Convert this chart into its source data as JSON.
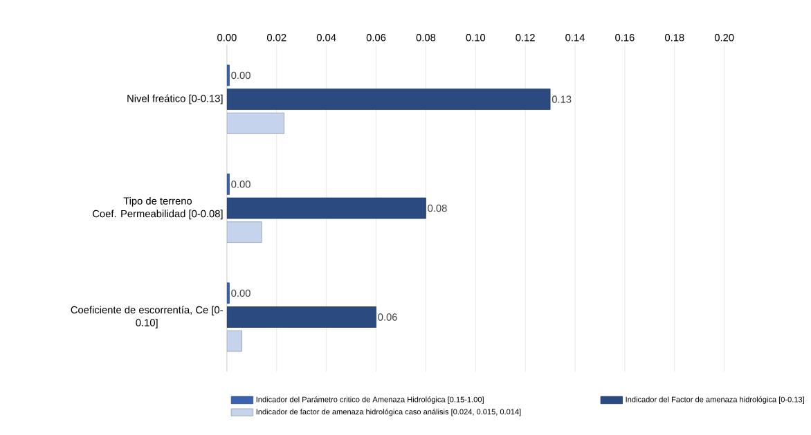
{
  "chart_data": {
    "type": "bar",
    "orientation": "horizontal",
    "categories": [
      "Nivel freático [0-0.13]",
      "Tipo de terreno\nCoef. Permeabilidad [0-0.08]",
      "Coeficiente de escorrentía, Ce [0-\n0.10]"
    ],
    "series": [
      {
        "name": "Indicador del Parámetro critico de Amenaza Hidrológica [0.15-1.00]",
        "color": "#3a62b0",
        "values": [
          0.001,
          0.001,
          0.001
        ],
        "value_labels": [
          "0.00",
          "0.00",
          "0.00"
        ]
      },
      {
        "name": "Indicador del Factor de amenaza hidrológica [0-0.13]",
        "color": "#2a4a80",
        "values": [
          0.13,
          0.08,
          0.06
        ],
        "value_labels": [
          "0.13",
          "0.08",
          "0.06"
        ]
      },
      {
        "name": "Indicador de factor de amenaza hidrológica caso análisis [0.024, 0.015, 0.014]",
        "color": "#c5d3ec",
        "values": [
          0.023,
          0.014,
          0.006
        ]
      }
    ],
    "xlim": [
      0,
      0.2
    ],
    "xticks": [
      {
        "value": 0,
        "label": "0.00"
      },
      {
        "value": 0.02,
        "label": "0.02"
      },
      {
        "value": 0.04,
        "label": "0.04"
      },
      {
        "value": 0.06,
        "label": "0.06"
      },
      {
        "value": 0.08,
        "label": "0.08"
      },
      {
        "value": 0.1,
        "label": "0.10"
      },
      {
        "value": 0.12,
        "label": "0.12"
      },
      {
        "value": 0.14,
        "label": "0.14"
      },
      {
        "value": 0.16,
        "label": "0.16"
      },
      {
        "value": 0.18,
        "label": "0.18"
      },
      {
        "value": 0.2,
        "label": "0.20"
      }
    ],
    "grid": "x",
    "legend": "bottom"
  }
}
